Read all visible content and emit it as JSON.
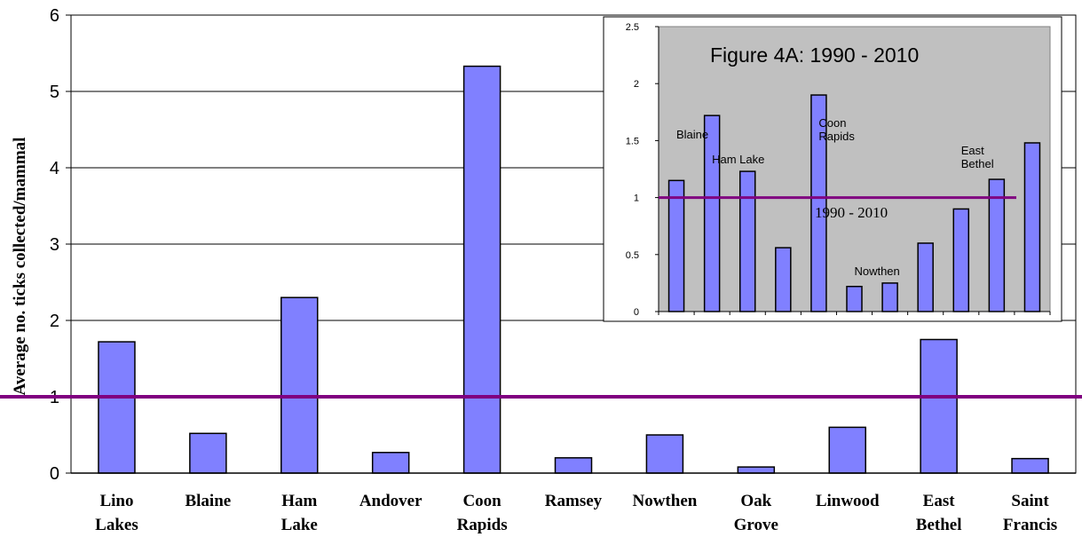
{
  "chart_data": [
    {
      "type": "bar",
      "categories": [
        [
          "Lino",
          "Lakes"
        ],
        [
          "Blaine"
        ],
        [
          "Ham",
          "Lake"
        ],
        [
          "Andover"
        ],
        [
          "Coon",
          "Rapids"
        ],
        [
          "Ramsey"
        ],
        [
          "Nowthen"
        ],
        [
          "Oak",
          "Grove"
        ],
        [
          "Linwood"
        ],
        [
          "East",
          "Bethel"
        ],
        [
          "Saint",
          "Francis"
        ]
      ],
      "values": [
        1.72,
        0.52,
        2.3,
        0.27,
        5.33,
        0.2,
        0.5,
        0.08,
        0.6,
        1.75,
        0.19
      ],
      "ylabel": "Average no. ticks collected/mammal",
      "ylim": [
        0,
        6
      ],
      "yticks": [
        "0",
        "1",
        "2",
        "3",
        "4",
        "5",
        "6"
      ],
      "reference_line": 1,
      "grid": true,
      "colors": {
        "bar": "#8080ff",
        "bar_edge": "#000000",
        "reference": "#800080",
        "grid": "#000000"
      }
    },
    {
      "type": "bar",
      "title": "Figure 4A:  1990 - 2010",
      "values": [
        1.15,
        1.72,
        1.23,
        0.56,
        1.9,
        0.22,
        0.25,
        0.6,
        0.9,
        1.16,
        1.48
      ],
      "ylim": [
        0,
        2.5
      ],
      "yticks": [
        "0",
        "0.5",
        "1",
        "1.5",
        "2",
        "2.5"
      ],
      "reference_line": 1,
      "reference_label": "1990 - 2010",
      "annotations": [
        {
          "lines": [
            "Blaine"
          ],
          "bar": 0,
          "y": 1.52
        },
        {
          "lines": [
            "Ham Lake"
          ],
          "bar": 1,
          "y": 1.3
        },
        {
          "lines": [
            "Coon",
            "Rapids"
          ],
          "bar": 4,
          "y": 1.62
        },
        {
          "lines": [
            "Nowthen"
          ],
          "bar": 5,
          "y": 0.32
        },
        {
          "lines": [
            "East",
            "Bethel"
          ],
          "bar": 8,
          "y": 1.38
        }
      ],
      "colors": {
        "plot_bg": "#c0c0c0",
        "bar": "#8080ff",
        "reference": "#800080"
      }
    }
  ]
}
